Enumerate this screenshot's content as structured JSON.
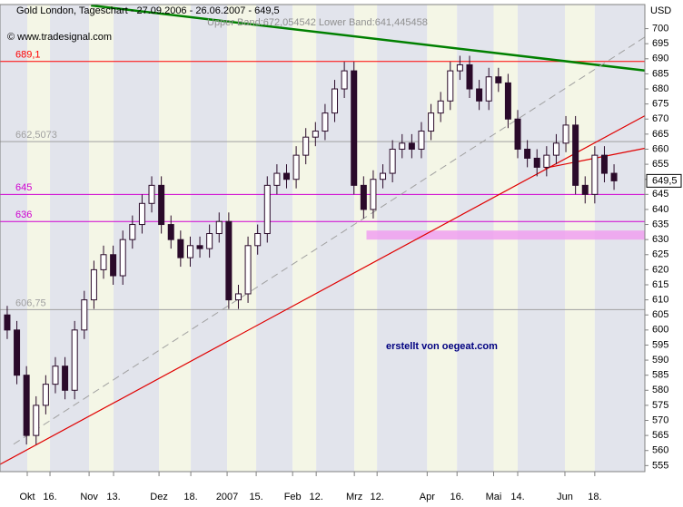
{
  "chart_data": {
    "type": "candlestick",
    "title": "Gold London, Tageschart - 27.09.2006 - 26.06.2007 - 649,5",
    "subtitle": "Upper Band:672,054542 Lower Band:641,445458",
    "source": "© www.tradesignal.com",
    "annotation": "erstellt von oegeat.com",
    "y_axis_label": "USD",
    "last_price": {
      "value": 649.5,
      "label": "649,5"
    },
    "up_color": "#ffffff",
    "down_color": "#2a0a2a",
    "open": [
      605,
      600,
      585,
      565,
      575,
      582,
      588,
      580,
      600,
      610,
      620,
      625,
      618,
      630,
      635,
      642,
      648,
      635,
      630,
      624,
      628,
      627,
      632,
      636,
      610,
      612,
      628,
      632,
      648,
      652,
      650,
      658,
      664,
      666,
      672,
      680,
      686,
      648,
      640,
      650,
      652,
      660,
      662,
      660,
      666,
      672,
      676,
      686,
      688,
      680,
      676,
      684,
      682,
      670,
      660,
      657,
      654,
      658,
      662,
      668,
      648,
      645,
      658,
      652
    ],
    "high": [
      608,
      603,
      588,
      578,
      585,
      591,
      591,
      603,
      613,
      623,
      628,
      628,
      633,
      638,
      645,
      651,
      651,
      638,
      633,
      631,
      631,
      635,
      639,
      639,
      615,
      631,
      635,
      651,
      655,
      655,
      661,
      667,
      669,
      675,
      683,
      689,
      689,
      651,
      653,
      655,
      663,
      665,
      665,
      669,
      675,
      679,
      689,
      691,
      691,
      683,
      687,
      687,
      685,
      673,
      663,
      660,
      661,
      665,
      671,
      671,
      651,
      661,
      661,
      655
    ],
    "low": [
      597,
      582,
      562,
      562,
      572,
      579,
      577,
      577,
      597,
      607,
      617,
      615,
      615,
      627,
      632,
      639,
      632,
      627,
      621,
      621,
      624,
      624,
      629,
      607,
      607,
      609,
      625,
      629,
      645,
      647,
      647,
      655,
      661,
      663,
      669,
      677,
      645,
      637,
      637,
      647,
      649,
      657,
      657,
      657,
      663,
      669,
      673,
      683,
      677,
      673,
      673,
      679,
      667,
      657,
      654,
      651,
      651,
      655,
      659,
      645,
      642,
      642,
      649,
      646.5
    ],
    "close": [
      600,
      585,
      565,
      575,
      582,
      588,
      580,
      600,
      610,
      620,
      625,
      618,
      630,
      635,
      642,
      648,
      635,
      630,
      624,
      628,
      627,
      632,
      636,
      610,
      612,
      628,
      632,
      648,
      652,
      650,
      658,
      664,
      666,
      672,
      680,
      686,
      648,
      640,
      650,
      652,
      660,
      662,
      660,
      666,
      672,
      676,
      686,
      688,
      680,
      676,
      684,
      682,
      670,
      660,
      657,
      654,
      658,
      662,
      668,
      648,
      645,
      658,
      652,
      649.5
    ],
    "xlim": [
      -0.75,
      66.2
    ],
    "xticks": [
      {
        "value": 2.08,
        "label": "Okt"
      },
      {
        "value": 4.44,
        "label": "16."
      },
      {
        "value": 8.5,
        "label": "Nov"
      },
      {
        "value": 11.04,
        "label": "13."
      },
      {
        "value": 15.76,
        "label": "Dez"
      },
      {
        "value": 19.06,
        "label": "18."
      },
      {
        "value": 22.83,
        "label": "2007"
      },
      {
        "value": 25.85,
        "label": "15."
      },
      {
        "value": 29.63,
        "label": "Feb"
      },
      {
        "value": 32.08,
        "label": "12."
      },
      {
        "value": 36.04,
        "label": "Mrz"
      },
      {
        "value": 38.4,
        "label": "12."
      },
      {
        "value": 43.6,
        "label": "Apr"
      },
      {
        "value": 46.7,
        "label": "16."
      },
      {
        "value": 50.5,
        "label": "Mai"
      },
      {
        "value": 53.0,
        "label": "14."
      },
      {
        "value": 57.9,
        "label": "Jun"
      },
      {
        "value": 61.0,
        "label": "18."
      }
    ],
    "ylim": [
      553,
      708
    ],
    "yticks": [
      555,
      560,
      565,
      570,
      575,
      580,
      585,
      590,
      595,
      600,
      605,
      610,
      615,
      620,
      625,
      630,
      635,
      640,
      645,
      650,
      655,
      660,
      665,
      670,
      675,
      680,
      685,
      690,
      695,
      700
    ],
    "levels": [
      {
        "value": 689.1,
        "label": "689,1",
        "color": "#ff0000"
      },
      {
        "value": 662.5073,
        "label": "662,5073",
        "color": "#a0a0a0"
      },
      {
        "value": 645,
        "label": "645",
        "color": "#d000d0"
      },
      {
        "value": 636,
        "label": "636",
        "color": "#d000d0"
      },
      {
        "value": 606.75,
        "label": "606,75",
        "color": "#a0a0a0"
      }
    ],
    "zone": {
      "from": 630,
      "to": 633,
      "x_start": 37.3,
      "color": "#f0a0f0"
    },
    "trendlines": [
      {
        "x": [
          8.7,
          66.2
        ],
        "y": [
          707.7,
          686.1
        ],
        "color": "#008000",
        "width": 2.5,
        "dash": false
      },
      {
        "x": [
          -0.75,
          66.2
        ],
        "y": [
          555.4,
          671.1
        ],
        "color": "#e00000",
        "width": 1.2,
        "dash": false
      },
      {
        "x": [
          55.8,
          66.2
        ],
        "y": [
          653.7,
          660.3
        ],
        "color": "#e00000",
        "width": 1.2,
        "dash": false
      },
      {
        "x": [
          0.66,
          66.2
        ],
        "y": [
          562.1,
          697.2
        ],
        "color": "#a0a0a0",
        "width": 1,
        "dash": true
      }
    ]
  }
}
